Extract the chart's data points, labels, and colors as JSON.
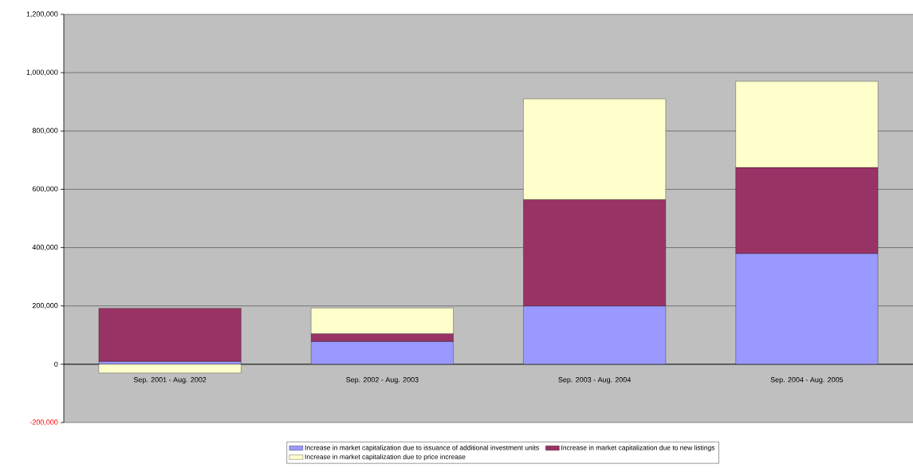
{
  "chart_data": {
    "type": "bar",
    "stacked": true,
    "categories": [
      "Sep. 2001  -  Aug. 2002",
      "Sep. 2002  -  Aug. 2003",
      "Sep. 2003  -  Aug. 2004",
      "Sep. 2004  -  Aug. 2005"
    ],
    "series": [
      {
        "name": "Increase in market capitalization due to issuance of additional investment units",
        "color": "#9999ff",
        "values": [
          10000,
          78000,
          200000,
          380000
        ]
      },
      {
        "name": "Increase in market capitalization due to new listings",
        "color": "#993366",
        "values": [
          182000,
          27000,
          365000,
          295000
        ]
      },
      {
        "name": "Increase in market capitalization due to price increase",
        "color": "#ffffcc",
        "values": [
          -30000,
          88000,
          345000,
          295000
        ]
      }
    ],
    "ylim": [
      -200000,
      1200000
    ],
    "yticks": [
      {
        "value": -200000,
        "label": "-200,000"
      },
      0,
      {
        "value": 200000,
        "label": "200,000"
      },
      {
        "value": 400000,
        "label": "400,000"
      },
      {
        "value": 600000,
        "label": "600,000"
      },
      {
        "value": 800000,
        "label": "800,000"
      },
      {
        "value": 1000000,
        "label": "1,000,000"
      },
      {
        "value": 1200000,
        "label": "1,200,000"
      }
    ],
    "grid": "y",
    "legend": "bottom"
  }
}
